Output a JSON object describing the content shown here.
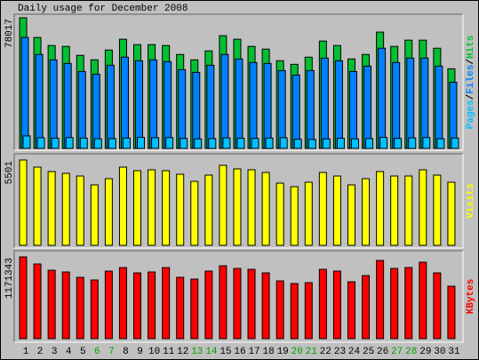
{
  "chart_data": [
    {
      "type": "bar",
      "title": "Daily usage for December 2008",
      "categories": [
        "1",
        "2",
        "3",
        "4",
        "5",
        "6",
        "7",
        "8",
        "9",
        "10",
        "11",
        "12",
        "13",
        "14",
        "15",
        "16",
        "17",
        "18",
        "19",
        "20",
        "21",
        "22",
        "23",
        "24",
        "25",
        "26",
        "27",
        "28",
        "29",
        "30",
        "31"
      ],
      "category_colors": [
        "#000000",
        "#000000",
        "#000000",
        "#000000",
        "#000000",
        "#00a000",
        "#00a000",
        "#000000",
        "#000000",
        "#000000",
        "#000000",
        "#000000",
        "#00a000",
        "#00a000",
        "#000000",
        "#000000",
        "#000000",
        "#000000",
        "#000000",
        "#00a000",
        "#00a000",
        "#000000",
        "#000000",
        "#000000",
        "#000000",
        "#000000",
        "#00a000",
        "#00a000",
        "#000000",
        "#000000",
        "#000000"
      ],
      "legend_separator": "/",
      "ylim": [
        0,
        78017
      ],
      "yticks": [
        78017
      ],
      "series": [
        {
          "name": "Pages",
          "color": "#00c0ff",
          "values": [
            7480,
            6400,
            6100,
            6500,
            6200,
            5800,
            5900,
            6200,
            6600,
            6400,
            6500,
            6000,
            5700,
            5900,
            6300,
            6100,
            6000,
            6200,
            6400,
            5500,
            5400,
            5700,
            6100,
            5700,
            5900,
            6600,
            6000,
            6300,
            6500,
            5800,
            6200
          ]
        },
        {
          "name": "Files",
          "color": "#0080ff",
          "values": [
            66266,
            56112,
            52906,
            50768,
            45958,
            44355,
            49699,
            54509,
            52371,
            52906,
            51837,
            47027,
            45424,
            49699,
            56112,
            53440,
            51302,
            50768,
            46493,
            43821,
            46493,
            53974,
            52371,
            45958,
            49165,
            59853,
            51302,
            53974,
            53974,
            49165,
            39546
          ]
        },
        {
          "name": "Hits",
          "color": "#00c030",
          "values": [
            78017,
            66262,
            61453,
            60919,
            55576,
            52903,
            58781,
            65195,
            61988,
            61988,
            61453,
            56109,
            52903,
            58247,
            67332,
            65195,
            60919,
            59316,
            52368,
            50232,
            54507,
            64125,
            61453,
            53437,
            56109,
            69468,
            60919,
            64660,
            64660,
            59850,
            47560
          ]
        }
      ]
    },
    {
      "type": "bar",
      "ylim": [
        0,
        5501
      ],
      "yticks": [
        5501
      ],
      "series": [
        {
          "name": "Visits",
          "color": "#ffff00",
          "values": [
            5501,
            5042,
            4756,
            4641,
            4469,
            3896,
            4298,
            5042,
            4813,
            4871,
            4813,
            4584,
            4126,
            4527,
            5157,
            4928,
            4871,
            4699,
            4011,
            3782,
            4068,
            4699,
            4469,
            3896,
            4298,
            4756,
            4469,
            4469,
            4871,
            4527,
            4068
          ]
        }
      ]
    },
    {
      "type": "bar",
      "ylim": [
        0,
        1171343
      ],
      "yticks": [
        1171343
      ],
      "series": [
        {
          "name": "KBytes",
          "color": "#ff0000",
          "values": [
            1171343,
            1069488,
            980364,
            954900,
            878508,
            840312,
            967632,
            1018560,
            942168,
            954900,
            1018560,
            878508,
            853044,
            967632,
            1044024,
            1005828,
            993096,
            942168,
            827580,
            789384,
            802116,
            993096,
            967632,
            814848,
            903972,
            1120416,
            1005828,
            1018560,
            1094952,
            942168,
            751188
          ]
        }
      ]
    }
  ]
}
